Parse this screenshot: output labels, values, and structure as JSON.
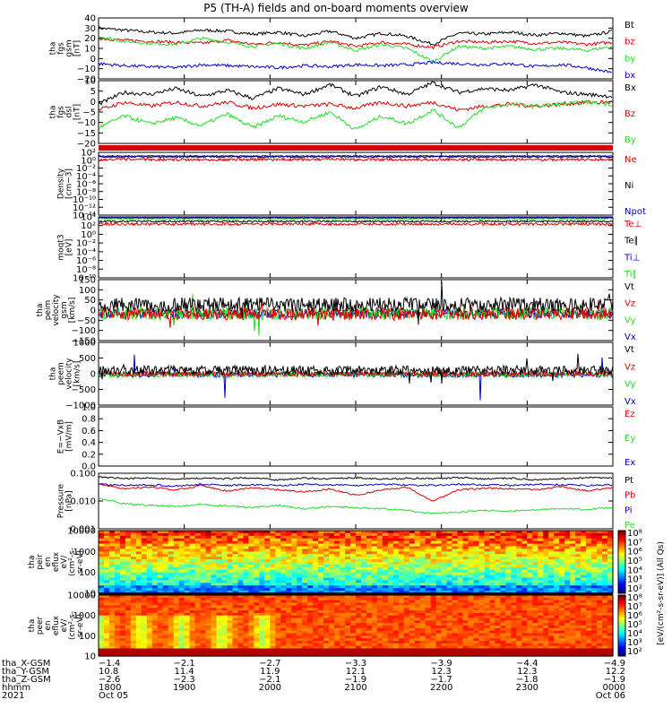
{
  "title": "P5 (TH-A) fields and on-board moments overview",
  "colors": {
    "black": "#000000",
    "red": "#dd0000",
    "green": "#22dd22",
    "blue": "#0000cc",
    "axis": "#000000"
  },
  "chart_data": [
    {
      "type": "line",
      "name": "fgs-gsm",
      "ylabel": [
        "tha",
        "fgs",
        "gsm",
        "[nT]"
      ],
      "yticks": [
        "40",
        "30",
        "20",
        "10",
        "0",
        "−10",
        "−20"
      ],
      "ylim": [
        -20,
        40
      ],
      "series": [
        {
          "name": "Bt",
          "color": "black",
          "values": [
            30,
            28,
            26,
            25,
            28,
            27,
            24,
            26,
            22,
            27,
            20,
            25,
            22,
            14,
            25,
            24,
            26,
            23,
            25,
            22,
            27
          ]
        },
        {
          "name": "bz",
          "color": "red",
          "values": [
            20,
            18,
            17,
            16,
            15,
            18,
            14,
            16,
            13,
            17,
            12,
            16,
            14,
            11,
            17,
            16,
            17,
            15,
            16,
            14,
            16
          ]
        },
        {
          "name": "by",
          "color": "green",
          "values": [
            22,
            17,
            15,
            14,
            20,
            16,
            12,
            15,
            10,
            16,
            8,
            14,
            10,
            -3,
            12,
            10,
            12,
            9,
            10,
            8,
            12
          ]
        },
        {
          "name": "bx",
          "color": "blue",
          "values": [
            -5,
            -7,
            -8,
            -9,
            -6,
            -7,
            -8,
            -9,
            -7,
            -8,
            -6,
            -7,
            -6,
            -4,
            -5,
            -6,
            -5,
            -8,
            -6,
            -9,
            -14
          ]
        }
      ]
    },
    {
      "type": "line",
      "name": "fgs-dsl",
      "ylabel": [
        "tha",
        "fgs",
        "dsl",
        "[nT]"
      ],
      "yticks": [
        "10",
        "5",
        "0",
        "−5",
        "−10",
        "−15",
        "−20"
      ],
      "ylim": [
        -22,
        10
      ],
      "series": [
        {
          "name": "Bx",
          "color": "black",
          "values": [
            -2,
            4,
            3,
            6,
            2,
            5,
            1,
            6,
            3,
            8,
            2,
            7,
            3,
            9,
            4,
            6,
            5,
            8,
            4,
            3,
            2
          ]
        },
        {
          "name": "Bz",
          "color": "red",
          "values": [
            -5,
            -1,
            -3,
            -1,
            -3,
            -1,
            -4,
            -2,
            -3,
            -2,
            -4,
            -1,
            -3,
            -1,
            -5,
            -3,
            -2,
            -3,
            -2,
            -1,
            -1
          ]
        },
        {
          "name": "By",
          "color": "green",
          "values": [
            -14,
            -8,
            -12,
            -9,
            -13,
            -7,
            -14,
            -8,
            -11,
            -6,
            -15,
            -8,
            -12,
            -5,
            -14,
            -4,
            -2,
            -3,
            -2,
            -1,
            -2
          ]
        }
      ]
    },
    {
      "type": "line",
      "name": "density",
      "ylabel": [
        "Density",
        "[cm−3]"
      ],
      "yticks": [
        "10²",
        "10⁰",
        "10⁻²",
        "10⁻⁴",
        "10⁻⁶",
        "10⁻⁸",
        "10⁻¹⁰",
        "10⁻¹²",
        "10⁻¹⁴"
      ],
      "series": [
        {
          "name": "Ne",
          "color": "red"
        },
        {
          "name": "Ni",
          "color": "black"
        },
        {
          "name": "Npot",
          "color": "blue"
        }
      ]
    },
    {
      "type": "line",
      "name": "temperature",
      "ylabel": [
        "moqt3",
        "[eV]"
      ],
      "yticks": [
        "10⁴",
        "10²",
        "10⁰",
        "10⁻²",
        "10⁻⁴",
        "10⁻⁶",
        "10⁻⁸",
        "10⁻¹⁰"
      ],
      "series": [
        {
          "name": "Te⊥",
          "color": "red"
        },
        {
          "name": "Te∥",
          "color": "black"
        },
        {
          "name": "Ti⊥",
          "color": "blue"
        },
        {
          "name": "Ti∥",
          "color": "green"
        }
      ]
    },
    {
      "type": "line",
      "name": "peim-velocity",
      "ylabel": [
        "tha",
        "peim",
        "velocity",
        "gsm",
        "[km/s]"
      ],
      "yticks": [
        "150",
        "100",
        "50",
        "0",
        "−50",
        "−100",
        "−150"
      ],
      "ylim": [
        -150,
        150
      ],
      "series": [
        {
          "name": "Vt",
          "color": "black"
        },
        {
          "name": "Vz",
          "color": "red"
        },
        {
          "name": "Vy",
          "color": "green"
        },
        {
          "name": "Vx",
          "color": "blue"
        }
      ]
    },
    {
      "type": "line",
      "name": "peem-velocity",
      "ylabel": [
        "tha",
        "peem",
        "velocity",
        "[km/s]"
      ],
      "yticks": [
        "1000",
        "500",
        "0",
        "−500",
        "−1000"
      ],
      "ylim": [
        -1000,
        1000
      ],
      "series": [
        {
          "name": "Vt",
          "color": "black"
        },
        {
          "name": "Vz",
          "color": "red"
        },
        {
          "name": "Vy",
          "color": "green"
        },
        {
          "name": "Vx",
          "color": "blue"
        }
      ]
    },
    {
      "type": "line",
      "name": "efield",
      "ylabel": [
        "E=−VxB",
        "[mV/m]"
      ],
      "yticks": [
        "1.0",
        "0.8",
        "0.6",
        "0.4",
        "0.2",
        "0.0"
      ],
      "ylim": [
        0,
        1
      ],
      "series": [
        {
          "name": "Ez",
          "color": "red"
        },
        {
          "name": "Ey",
          "color": "green"
        },
        {
          "name": "Ex",
          "color": "blue"
        }
      ]
    },
    {
      "type": "line",
      "name": "pressure",
      "ylabel": [
        "Pressure",
        "[nPa]"
      ],
      "yticks": [
        "0.100",
        "0.010",
        "0.001"
      ],
      "series": [
        {
          "name": "Pt",
          "color": "black"
        },
        {
          "name": "Pb",
          "color": "red"
        },
        {
          "name": "Pe",
          "color": "green"
        },
        {
          "name": "Pi",
          "color": "blue"
        }
      ]
    },
    {
      "type": "heatmap",
      "name": "peir-spectrogram",
      "ylabel": [
        "tha",
        "peir",
        "en",
        "eflux",
        "eV/",
        "(cm²-s-",
        "sr-eV)"
      ],
      "yticks": [
        "10000",
        "1000",
        "100",
        "10"
      ],
      "colorbar": {
        "ticks": [
          "10⁸",
          "10⁷",
          "10⁶",
          "10⁵",
          "10⁴",
          "10³",
          "10²"
        ]
      }
    },
    {
      "type": "heatmap",
      "name": "peer-spectrogram",
      "ylabel": [
        "tha",
        "peer",
        "en",
        "eflux",
        "eV/",
        "(cm²-s-",
        "sr-eV)"
      ],
      "yticks": [
        "10000",
        "1000",
        "100",
        "10"
      ],
      "colorbar": {
        "ticks": [
          "10⁸",
          "10⁷",
          "10⁶",
          "10⁵",
          "10⁴",
          "10³",
          "10²"
        ]
      }
    }
  ],
  "colorbar_label": "[eV/(cm²-s-sr-eV)] (All Qs)",
  "xaxis": {
    "row_labels": [
      "tha_X-GSM",
      "tha_Y-GSM",
      "tha_Z-GSM",
      "hhmm",
      "2021"
    ],
    "ticks": [
      {
        "x": "−1.4",
        "y": "10.8",
        "z": "−2.6",
        "hhmm": "1800",
        "date": "Oct 05"
      },
      {
        "x": "−2.1",
        "y": "11.4",
        "z": "−2.3",
        "hhmm": "1900",
        "date": ""
      },
      {
        "x": "−2.7",
        "y": "11.9",
        "z": "−2.1",
        "hhmm": "2000",
        "date": ""
      },
      {
        "x": "−3.3",
        "y": "12.1",
        "z": "−1.9",
        "hhmm": "2100",
        "date": ""
      },
      {
        "x": "−3.9",
        "y": "12.3",
        "z": "−1.7",
        "hhmm": "2200",
        "date": ""
      },
      {
        "x": "−4.4",
        "y": "12.3",
        "z": "−1.8",
        "hhmm": "2300",
        "date": ""
      },
      {
        "x": "−4.9",
        "y": "12.2",
        "z": "−1.9",
        "hhmm": "0000",
        "date": "Oct 06"
      }
    ]
  }
}
